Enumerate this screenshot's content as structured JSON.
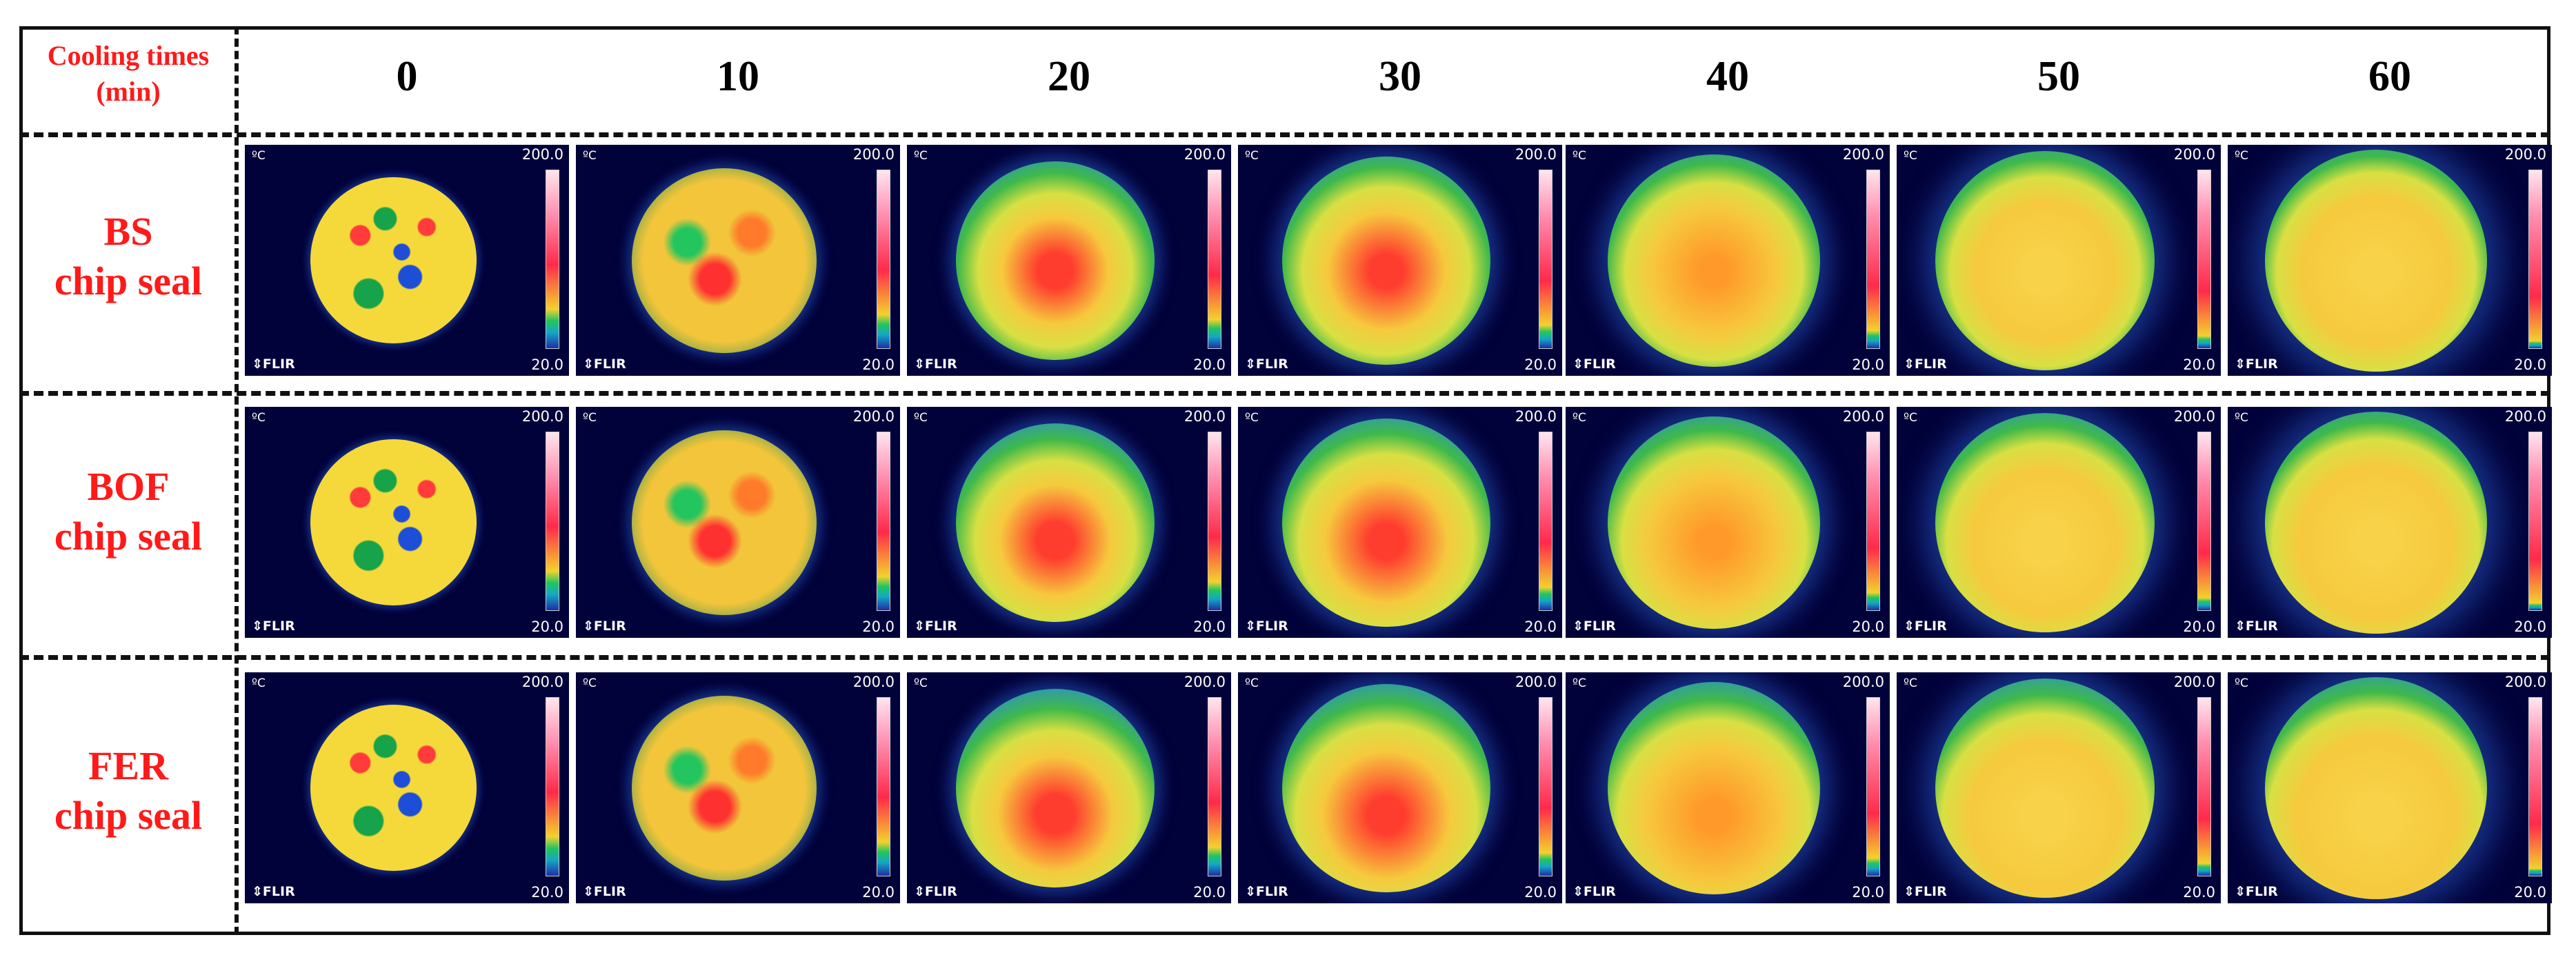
{
  "header": {
    "corner_label_line1": "Cooling times",
    "corner_label_line2": "(min)",
    "times": [
      "0",
      "10",
      "20",
      "30",
      "40",
      "50",
      "60"
    ]
  },
  "rows": [
    {
      "line1": "BS",
      "line2": "chip seal"
    },
    {
      "line1": "BOF",
      "line2": "chip seal"
    },
    {
      "line1": "FER",
      "line2": "chip seal"
    }
  ],
  "thermal_image": {
    "unit": "ºC",
    "scale_max": "200.0",
    "scale_min": "20.0",
    "brand": "⇕FLIR"
  },
  "colors": {
    "label_red": "#ff1a1a",
    "background_dark_blue": "#02023a"
  }
}
